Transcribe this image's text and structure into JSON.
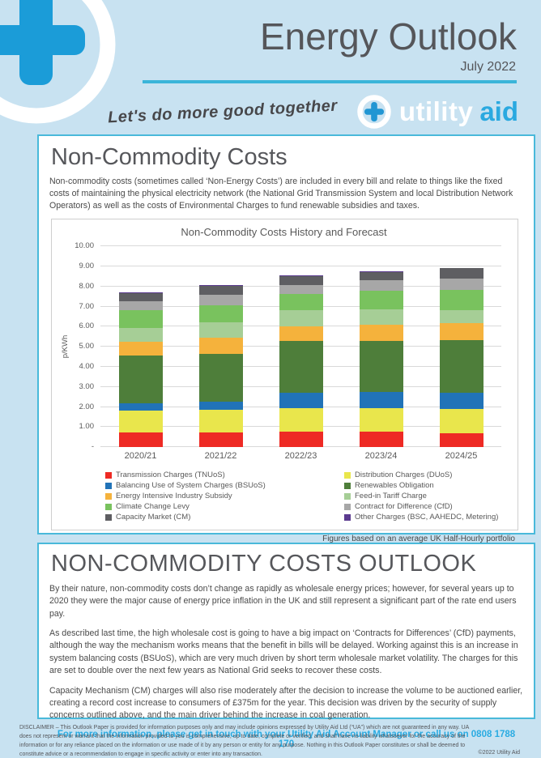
{
  "header": {
    "title": "Energy Outlook",
    "date": "July 2022",
    "tagline": "Let's do more good together",
    "logo_utility": "utility",
    "logo_aid": "aid"
  },
  "section1": {
    "heading": "Non-Commodity Costs",
    "body": "Non-commodity costs (sometimes called ‘Non-Energy Costs’) are included in every bill and relate to things like the fixed costs of maintaining the physical electricity network (the National Grid Transmission System and local Distribution Network Operators) as well as the costs of Environmental Charges to fund renewable subsidies and taxes."
  },
  "chart_data": {
    "type": "bar",
    "stacked": true,
    "title": "Non-Commodity Costs History and Forecast",
    "ylabel": "p/KWh",
    "ylim": [
      0,
      10
    ],
    "grid": true,
    "legend_position": "bottom",
    "yticks": [
      "-",
      "1.00",
      "2.00",
      "3.00",
      "4.00",
      "5.00",
      "6.00",
      "7.00",
      "8.00",
      "9.00",
      "10.00"
    ],
    "categories": [
      "2020/21",
      "2021/22",
      "2022/23",
      "2023/24",
      "2024/25"
    ],
    "series": [
      {
        "name": "Transmission Charges (TNUoS)",
        "color": "#ee2a24",
        "values": [
          0.75,
          0.75,
          0.77,
          0.76,
          0.7
        ]
      },
      {
        "name": "Distribution Charges (DUoS)",
        "color": "#e9e64c",
        "values": [
          1.05,
          1.1,
          1.15,
          1.16,
          1.18
        ]
      },
      {
        "name": "Balancing Use of System Charges (BSUoS)",
        "color": "#2173b8",
        "values": [
          0.38,
          0.4,
          0.77,
          0.83,
          0.81
        ]
      },
      {
        "name": "Renewables Obligation",
        "color": "#4e7e3a",
        "values": [
          2.4,
          2.4,
          2.58,
          2.53,
          2.62
        ]
      },
      {
        "name": "Energy Intensive Industry Subsidy",
        "color": "#f5b23c",
        "values": [
          0.65,
          0.8,
          0.74,
          0.83,
          0.87
        ]
      },
      {
        "name": "Feed-in Tariff Charge",
        "color": "#a6ce96",
        "values": [
          0.7,
          0.75,
          0.8,
          0.77,
          0.63
        ]
      },
      {
        "name": "Climate Change Levy",
        "color": "#79c25e",
        "values": [
          0.88,
          0.85,
          0.81,
          0.91,
          1.02
        ]
      },
      {
        "name": "Contract for Difference (CfD)",
        "color": "#a7a7a7",
        "values": [
          0.44,
          0.55,
          0.47,
          0.51,
          0.57
        ]
      },
      {
        "name": "Capacity Market (CM)",
        "color": "#5e5e62",
        "values": [
          0.43,
          0.45,
          0.44,
          0.43,
          0.5
        ]
      },
      {
        "name": "Other Charges (BSC, AAHEDC, Metering)",
        "color": "#5b3b8f",
        "values": [
          0.04,
          0.03,
          0.03,
          0.03,
          0.03
        ]
      }
    ],
    "note": "Figures based on an average UK Half-Hourly portfolio"
  },
  "section2": {
    "heading": "NON-COMMODITY COSTS OUTLOOK",
    "paragraphs": [
      "By their nature, non-commodity costs don’t change as rapidly as wholesale energy prices; however, for several years up to 2020 they were the major cause of energy price inflation in the UK and still represent a significant part of the rate end users pay.",
      "As described last time, the high wholesale cost is going to have a big impact on ‘Contracts for Differences’ (CfD) payments, although the way the mechanism works means that the benefit in bills will be delayed.  Working against this is an increase in system balancing costs (BSUoS), which are very much driven by short term wholesale market volatility.  The charges for this are set to double over the next few years as National Grid seeks to recover these costs.",
      "Capacity Mechanism (CM) charges will also rise moderately after the decision to increase the volume to be auctioned earlier, creating a record cost increase to consumers of £375m for the year.  This decision was driven by the security of supply concerns outlined above, and the main driver behind the increase in coal generation."
    ],
    "cta": "For more information, please get in touch with your Utility Aid Account Manager or call us on 0808 1788 170"
  },
  "footer": {
    "disclaimer": "DISCLAIMER – This Outlook Paper is provided for information purposes only and may include opinions expressed by Utility Aid Ltd (“UA”) which are not guaranteed in any way. UA does not represent or warrant that the information provided to you is comprehensive, up to date, complete or verified, and shall have no liability whatsoever for the accuracy of the information or for any reliance placed on the information or use made of it by any person or entity for any purpose. Nothing in this Outlook Paper constitutes or shall be deemed to constitute advice or a recommendation to engage in specific activity or enter into any transaction.",
    "copyright": "©2022 Utility Aid"
  },
  "colors": {
    "page_background": "#c8e2f1",
    "section_border": "#49b9da",
    "accent_blue": "#29abe2",
    "logo_plus_blue": "#1b9cd8",
    "heading_gray": "#56575b",
    "rule_teal": "#3bb5d9"
  }
}
